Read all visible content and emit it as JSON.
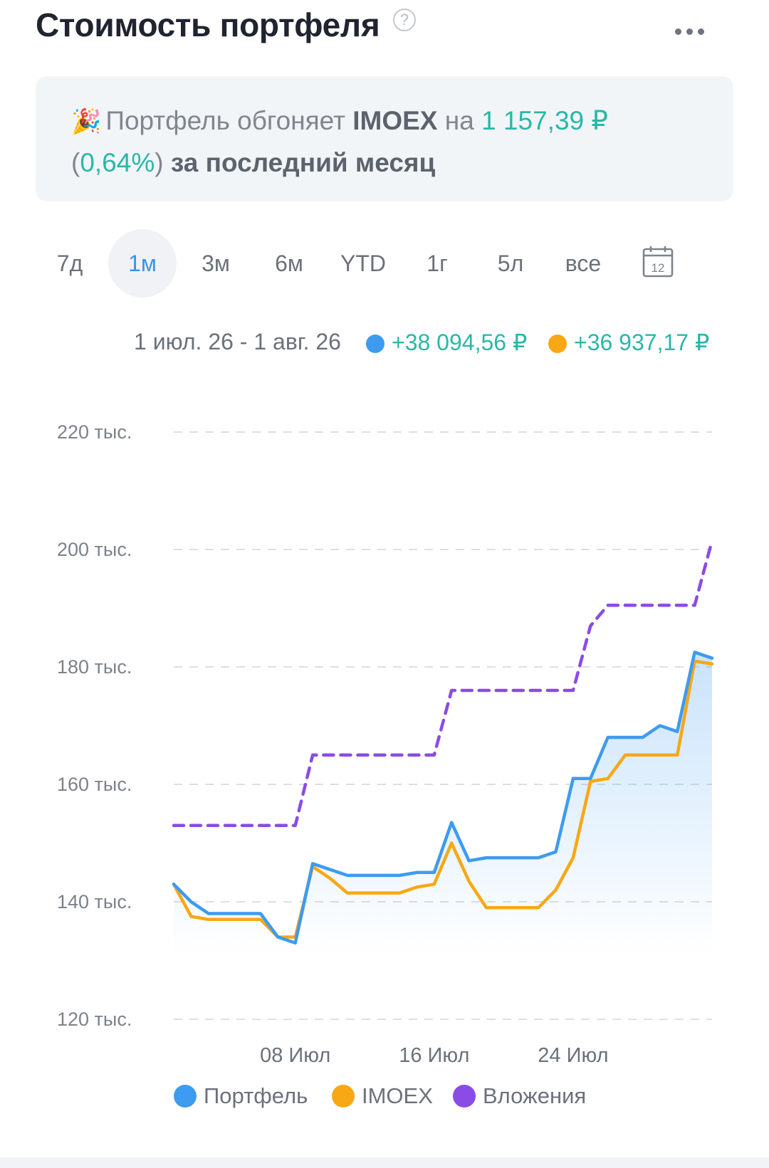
{
  "header": {
    "title": "Стоимость портфеля",
    "help_glyph": "?",
    "help_icon": "question-circle-icon",
    "more_icon": "more-horizontal-icon"
  },
  "banner": {
    "emoji": "🎉",
    "part1": "Портфель обгоняет ",
    "index": "IMOEX",
    "part2": " на ",
    "amount": "1 157,39 ₽",
    "paren_open": "(",
    "percent": "0,64%",
    "paren_close": ")",
    "period": "за последний месяц"
  },
  "tabs": [
    {
      "label": "7д",
      "active": false
    },
    {
      "label": "1м",
      "active": true
    },
    {
      "label": "3м",
      "active": false
    },
    {
      "label": "6м",
      "active": false
    },
    {
      "label": "YTD",
      "active": false
    },
    {
      "label": "1г",
      "active": false
    },
    {
      "label": "5л",
      "active": false
    },
    {
      "label": "все",
      "active": false
    }
  ],
  "calendar": {
    "icon": "calendar-icon",
    "day": "12"
  },
  "summary": {
    "range": "1 июл. 26 - 1 авг. 26",
    "portfolio_change": "+38 094,56 ₽",
    "index_change": "+36 937,17 ₽"
  },
  "colors": {
    "portfolio": "#3d9bf0",
    "imoex": "#f8a715",
    "investments": "#8a4be6",
    "positive": "#2ab7a7",
    "tab_active": "#3a93e6"
  },
  "chart_data": {
    "type": "line",
    "x_range": [
      "2026-07-01",
      "2026-08-01"
    ],
    "x_ticks": [
      "08 Июл",
      "16 Июл",
      "24 Июл"
    ],
    "y_ticks": [
      "220 тыс.",
      "200 тыс.",
      "180 тыс.",
      "160 тыс.",
      "140 тыс.",
      "120 тыс."
    ],
    "ylim": [
      120000,
      220000
    ],
    "grid": true,
    "legend_position": "bottom",
    "x": [
      "2026-07-01",
      "2026-07-02",
      "2026-07-03",
      "2026-07-04",
      "2026-07-05",
      "2026-07-06",
      "2026-07-07",
      "2026-07-08",
      "2026-07-09",
      "2026-07-10",
      "2026-07-11",
      "2026-07-12",
      "2026-07-13",
      "2026-07-14",
      "2026-07-15",
      "2026-07-16",
      "2026-07-17",
      "2026-07-18",
      "2026-07-19",
      "2026-07-20",
      "2026-07-21",
      "2026-07-22",
      "2026-07-23",
      "2026-07-24",
      "2026-07-25",
      "2026-07-26",
      "2026-07-27",
      "2026-07-28",
      "2026-07-29",
      "2026-07-30",
      "2026-07-31",
      "2026-08-01"
    ],
    "series": [
      {
        "name": "Портфель",
        "values": [
          143000,
          140000,
          138000,
          138000,
          138000,
          138000,
          134000,
          133000,
          146500,
          145500,
          144500,
          144500,
          144500,
          144500,
          145000,
          145000,
          153500,
          147000,
          147500,
          147500,
          147500,
          147500,
          148500,
          161000,
          161000,
          168000,
          168000,
          168000,
          170000,
          169000,
          182500,
          181500
        ]
      },
      {
        "name": "IMOEX",
        "values": [
          143000,
          137500,
          137000,
          137000,
          137000,
          137000,
          134000,
          134000,
          146000,
          144000,
          141500,
          141500,
          141500,
          141500,
          142500,
          143000,
          150000,
          143500,
          139000,
          139000,
          139000,
          139000,
          142000,
          147500,
          160500,
          161000,
          165000,
          165000,
          165000,
          165000,
          181000,
          180500
        ]
      },
      {
        "name": "Вложения",
        "values": [
          153000,
          153000,
          153000,
          153000,
          153000,
          153000,
          153000,
          153000,
          165000,
          165000,
          165000,
          165000,
          165000,
          165000,
          165000,
          165000,
          176000,
          176000,
          176000,
          176000,
          176000,
          176000,
          176000,
          176000,
          187000,
          190500,
          190500,
          190500,
          190500,
          190500,
          190500,
          201500
        ]
      }
    ]
  }
}
